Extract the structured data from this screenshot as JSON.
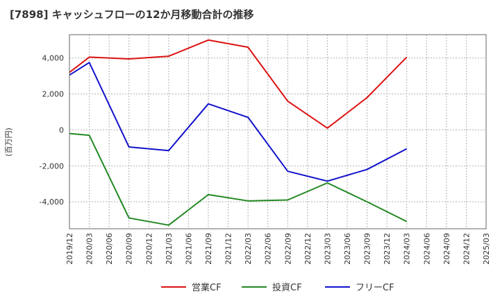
{
  "chart_data": {
    "type": "line",
    "title": "[7898]  キャッシュフローの12か月移動合計の推移",
    "ylabel": "(百万円)",
    "xlabel": "",
    "ylim": [
      -5500,
      5300
    ],
    "yticks": [
      -4000,
      -2000,
      0,
      2000,
      4000
    ],
    "ytick_labels": [
      "-4,000",
      "-2,000",
      "0",
      "2,000",
      "4,000"
    ],
    "x_labels": [
      "2019/12",
      "2020/03",
      "2020/06",
      "2020/09",
      "2020/12",
      "2021/03",
      "2021/06",
      "2021/09",
      "2021/12",
      "2022/03",
      "2022/06",
      "2022/09",
      "2022/12",
      "2023/03",
      "2023/06",
      "2023/09",
      "2023/12",
      "2024/03",
      "2024/06",
      "2024/09",
      "2024/12",
      "2025/03"
    ],
    "grid": true,
    "legend_position": "bottom",
    "series": [
      {
        "name": "営業CF",
        "color": "#dd1111",
        "points": [
          [
            0,
            3200
          ],
          [
            1,
            4050
          ],
          [
            3,
            3950
          ],
          [
            5,
            4100
          ],
          [
            7,
            5000
          ],
          [
            9,
            4600
          ],
          [
            11,
            1600
          ],
          [
            13,
            100
          ],
          [
            15,
            1800
          ],
          [
            17,
            4050
          ]
        ]
      },
      {
        "name": "投資CF",
        "color": "#228822",
        "points": [
          [
            0,
            -200
          ],
          [
            1,
            -300
          ],
          [
            3,
            -4900
          ],
          [
            5,
            -5300
          ],
          [
            7,
            -3600
          ],
          [
            9,
            -3950
          ],
          [
            11,
            -3900
          ],
          [
            13,
            -2950
          ],
          [
            15,
            -4000
          ],
          [
            17,
            -5100
          ]
        ]
      },
      {
        "name": "フリーCF",
        "color": "#1111cc",
        "points": [
          [
            0,
            3050
          ],
          [
            1,
            3750
          ],
          [
            3,
            -950
          ],
          [
            5,
            -1150
          ],
          [
            7,
            1450
          ],
          [
            9,
            700
          ],
          [
            11,
            -2300
          ],
          [
            13,
            -2850
          ],
          [
            15,
            -2200
          ],
          [
            17,
            -1050
          ]
        ]
      }
    ]
  }
}
